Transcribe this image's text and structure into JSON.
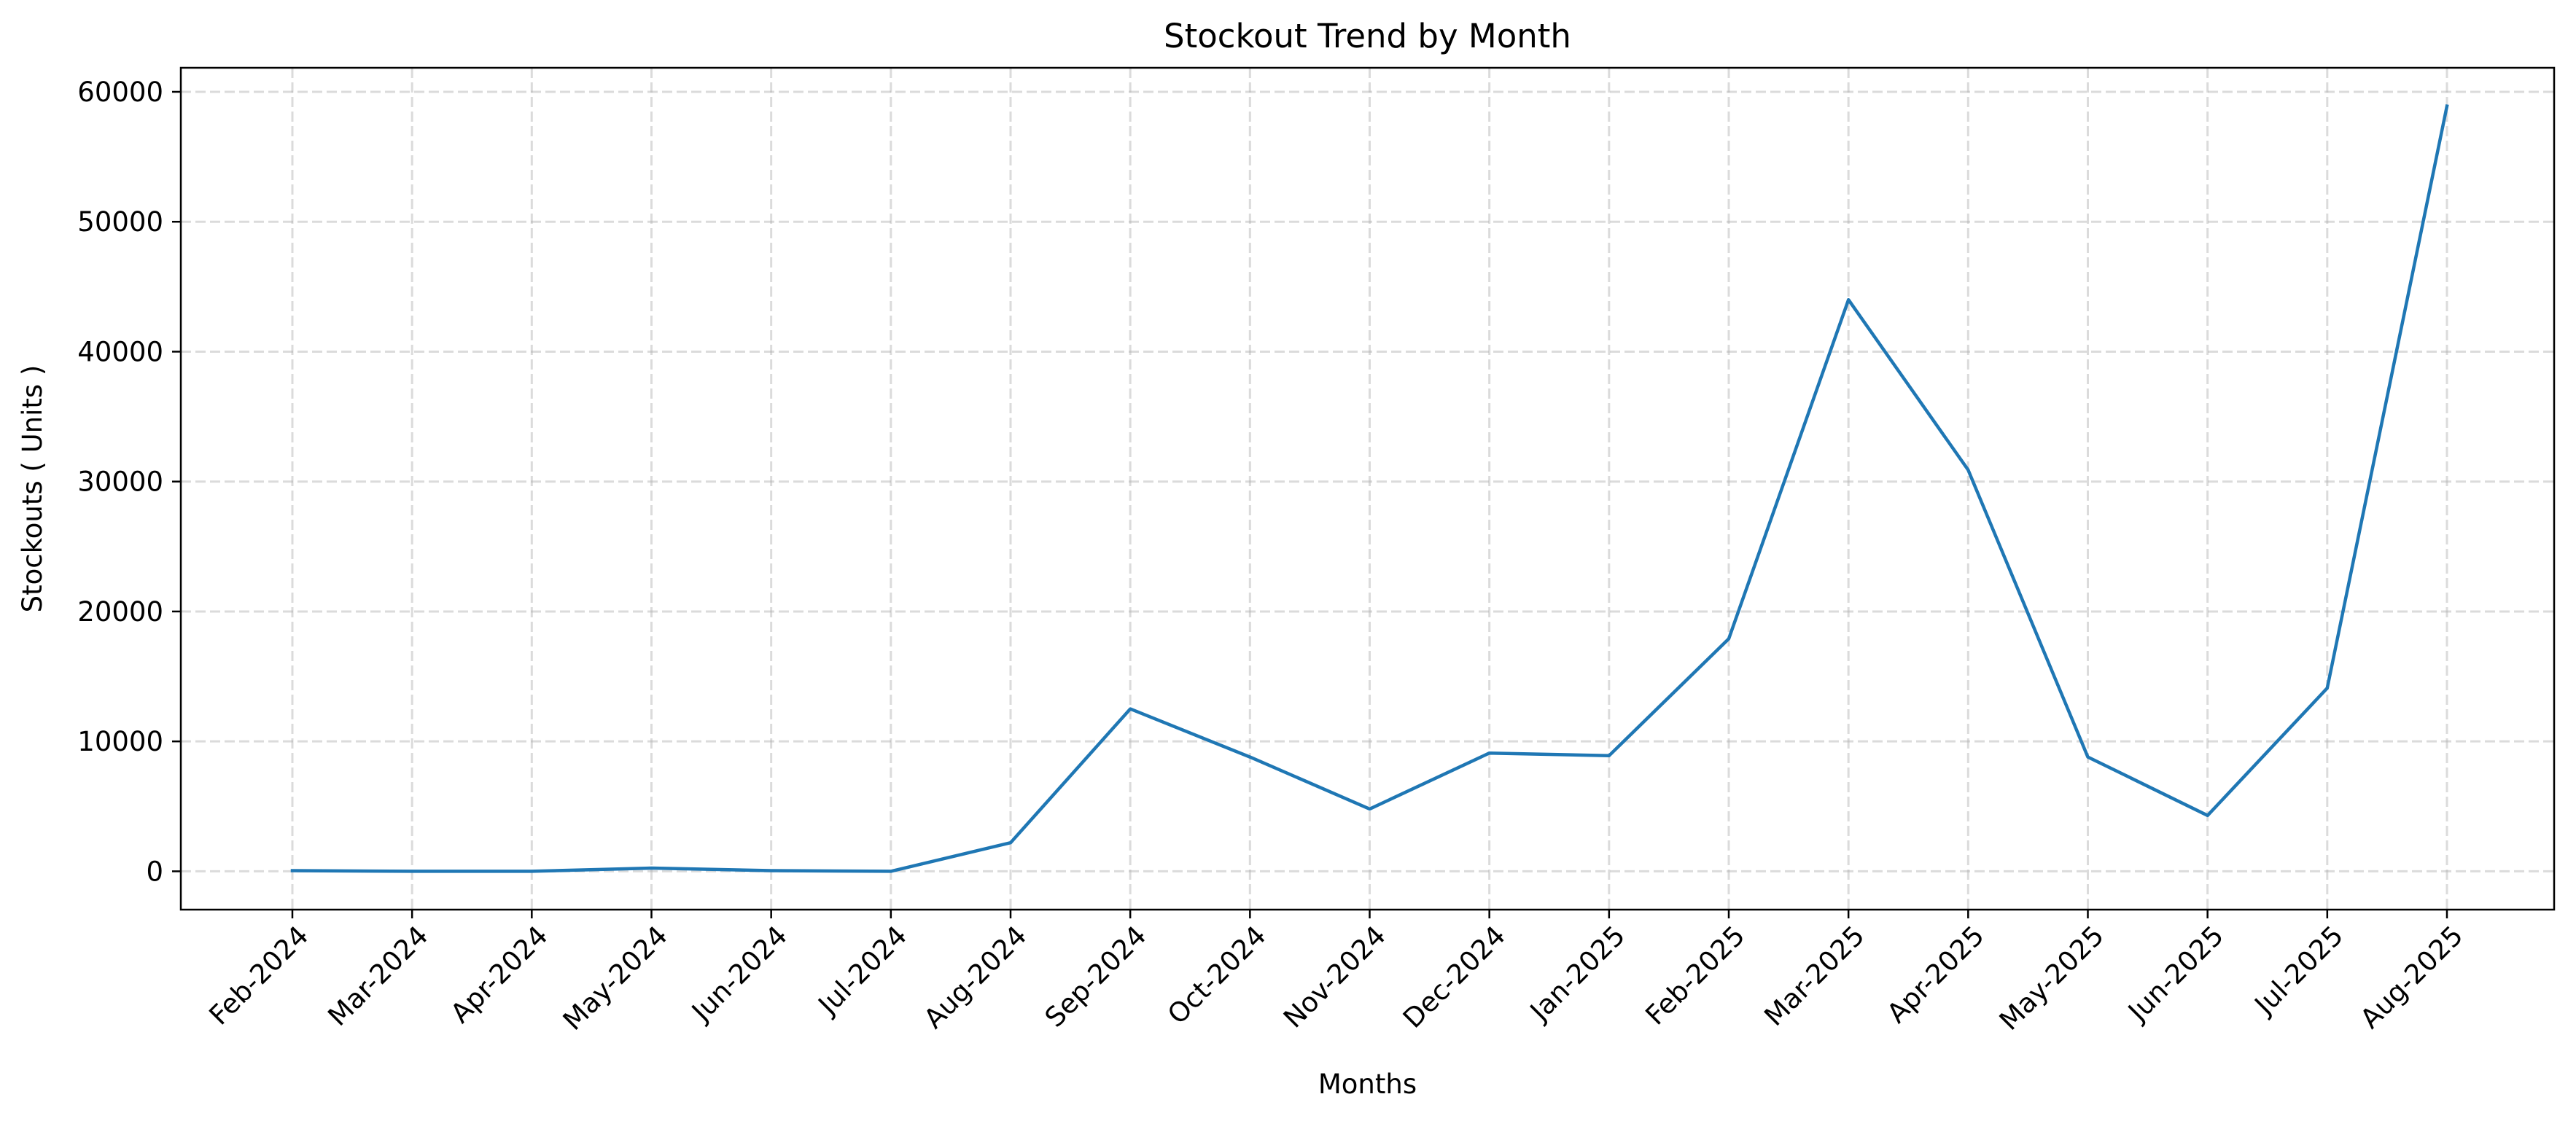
{
  "chart_data": {
    "type": "line",
    "title": "Stockout Trend by Month",
    "xlabel": "Months",
    "ylabel": "Stockouts ( Units )",
    "categories": [
      "Feb-2024",
      "Mar-2024",
      "Apr-2024",
      "May-2024",
      "Jun-2024",
      "Jul-2024",
      "Aug-2024",
      "Sep-2024",
      "Oct-2024",
      "Nov-2024",
      "Dec-2024",
      "Jan-2025",
      "Feb-2025",
      "Mar-2025",
      "Apr-2025",
      "May-2025",
      "Jun-2025",
      "Jul-2025",
      "Aug-2025"
    ],
    "series": [
      {
        "values": [
          50,
          0,
          0,
          250,
          50,
          0,
          2200,
          12500,
          8800,
          4800,
          9100,
          8900,
          17900,
          44000,
          30900,
          8800,
          4300,
          14100,
          58900
        ],
        "color": "#1f77b4"
      }
    ],
    "ylim": [
      -2950,
      61850
    ],
    "yticks": [
      0,
      10000,
      20000,
      30000,
      40000,
      50000,
      60000
    ],
    "grid": true
  }
}
